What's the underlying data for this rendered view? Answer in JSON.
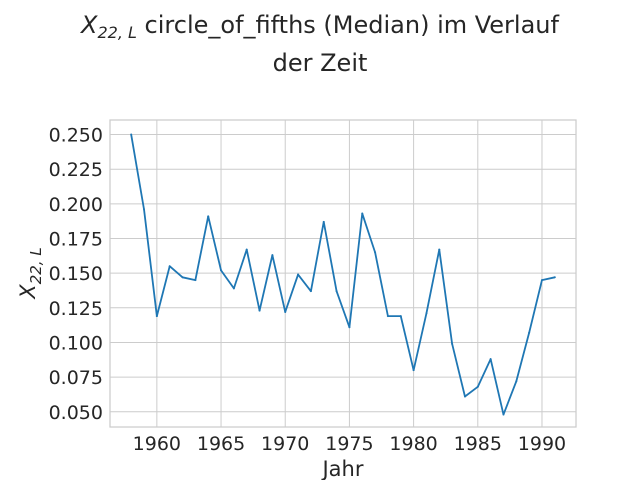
{
  "chart_data": {
    "type": "line",
    "title_math": {
      "base": "X",
      "subscript": "22, L"
    },
    "title_line1_rest": " circle_of_fifths (Median) im Verlauf",
    "title_line2": "der Zeit",
    "xlabel": "Jahr",
    "ylabel_math": {
      "base": "X",
      "subscript": "22, L"
    },
    "xlim": [
      1956.35,
      1992.65
    ],
    "ylim": [
      0.039,
      0.2605
    ],
    "x_ticks": [
      1960,
      1965,
      1970,
      1975,
      1980,
      1985,
      1990
    ],
    "x_tick_labels": [
      "1960",
      "1965",
      "1970",
      "1975",
      "1980",
      "1985",
      "1990"
    ],
    "y_ticks": [
      0.05,
      0.075,
      0.1,
      0.125,
      0.15,
      0.175,
      0.2,
      0.225,
      0.25
    ],
    "y_tick_labels": [
      "0.050",
      "0.075",
      "0.100",
      "0.125",
      "0.150",
      "0.175",
      "0.200",
      "0.225",
      "0.250"
    ],
    "grid": true,
    "series": [
      {
        "color": "#1f77b4",
        "x": [
          1958,
          1959,
          1960,
          1961,
          1962,
          1963,
          1964,
          1965,
          1966,
          1967,
          1968,
          1969,
          1970,
          1971,
          1972,
          1973,
          1974,
          1975,
          1976,
          1977,
          1978,
          1979,
          1980,
          1981,
          1982,
          1983,
          1984,
          1985,
          1986,
          1987,
          1988,
          1989,
          1990,
          1991
        ],
        "y": [
          0.25,
          0.196,
          0.119,
          0.155,
          0.147,
          0.145,
          0.191,
          0.152,
          0.139,
          0.167,
          0.123,
          0.163,
          0.122,
          0.149,
          0.137,
          0.187,
          0.137,
          0.111,
          0.193,
          0.165,
          0.119,
          0.119,
          0.08,
          0.121,
          0.167,
          0.099,
          0.061,
          0.068,
          0.088,
          0.048,
          0.072,
          0.107,
          0.145,
          0.147
        ]
      }
    ]
  }
}
